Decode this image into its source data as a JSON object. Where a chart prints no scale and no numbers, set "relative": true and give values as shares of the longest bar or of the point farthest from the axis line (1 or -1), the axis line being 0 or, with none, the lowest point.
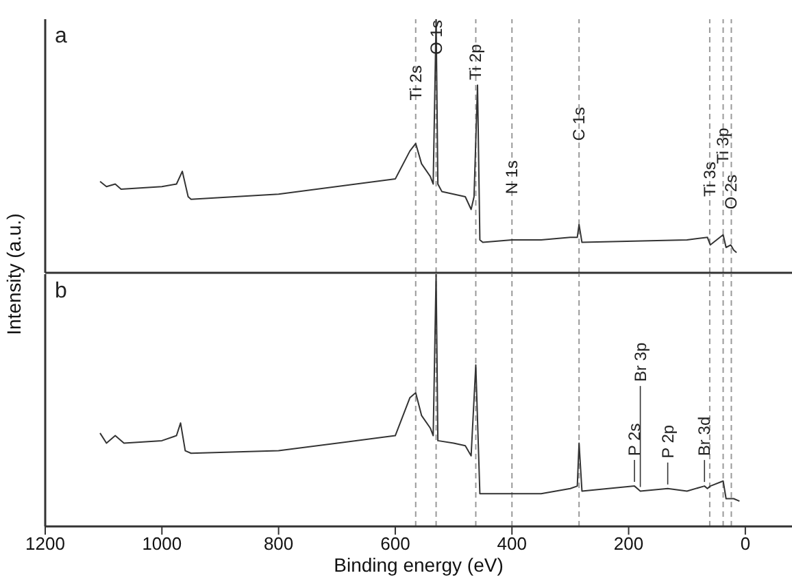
{
  "chart_data": [
    {
      "type": "line",
      "relative": true,
      "xlim": [
        1200,
        -80
      ],
      "tick_labels": false,
      "ylabel": "Intensity (a.u.)",
      "grid": false,
      "legend": false,
      "marker": "none",
      "line_style": "solid",
      "x": [
        1106,
        1095,
        1080,
        1070,
        1000,
        975,
        965,
        955,
        950,
        800,
        600,
        575,
        565,
        555,
        540,
        535,
        530,
        527,
        520,
        480,
        470,
        465,
        459,
        455,
        450,
        400,
        350,
        300,
        288,
        285,
        280,
        100,
        65,
        60,
        38,
        33,
        25,
        20,
        15
      ],
      "series": [
        {
          "color": "#333333",
          "values": [
            0.36,
            0.34,
            0.35,
            0.33,
            0.34,
            0.35,
            0.4,
            0.3,
            0.29,
            0.31,
            0.37,
            0.48,
            0.51,
            0.43,
            0.38,
            0.35,
            1,
            0.35,
            0.32,
            0.3,
            0.25,
            0.3,
            0.74,
            0.13,
            0.12,
            0.13,
            0.13,
            0.14,
            0.14,
            0.19,
            0.12,
            0.13,
            0.14,
            0.11,
            0.15,
            0.1,
            0.11,
            0.09,
            0.08
          ]
        }
      ],
      "ref_lines": [
        {
          "axis": "x",
          "value": 565,
          "color": "#999999",
          "line_style": "dashed"
        },
        {
          "axis": "x",
          "value": 530,
          "color": "#999999",
          "line_style": "dashed"
        },
        {
          "axis": "x",
          "value": 462,
          "color": "#999999",
          "line_style": "dashed"
        },
        {
          "axis": "x",
          "value": 400,
          "color": "#999999",
          "line_style": "dashed"
        },
        {
          "axis": "x",
          "value": 285,
          "color": "#999999",
          "line_style": "dashed"
        },
        {
          "axis": "x",
          "value": 61,
          "color": "#999999",
          "line_style": "dashed"
        },
        {
          "axis": "x",
          "value": 38,
          "color": "#999999",
          "line_style": "dashed"
        },
        {
          "axis": "x",
          "value": 24,
          "color": "#999999",
          "line_style": "dashed"
        }
      ],
      "annotations": [
        "a",
        {
          "text": "Ti 2s",
          "x": 565,
          "y": 0.68
        },
        {
          "text": "O 1s",
          "x": 530,
          "y": 0.86
        },
        {
          "text": "Ti 2p",
          "x": 462,
          "y": 0.76
        },
        {
          "text": "N 1s",
          "x": 400,
          "y": 0.31
        },
        {
          "text": "C 1s",
          "x": 285,
          "y": 0.52
        },
        {
          "text": "Ti 3s",
          "x": 61,
          "y": 0.3
        },
        {
          "text": "Ti 3p",
          "x": 38,
          "y": 0.43
        },
        {
          "text": "O 2s",
          "x": 24,
          "y": 0.25
        }
      ]
    },
    {
      "type": "line",
      "relative": true,
      "xlim": [
        1200,
        -80
      ],
      "xticks": [
        1200,
        1000,
        800,
        600,
        400,
        200,
        0
      ],
      "tick_labels": "x",
      "xlabel": "Binding energy (eV)",
      "grid": false,
      "legend": false,
      "marker": "none",
      "line_style": "solid",
      "x": [
        1106,
        1095,
        1080,
        1065,
        1000,
        975,
        968,
        960,
        950,
        800,
        600,
        575,
        565,
        555,
        540,
        535,
        530,
        527,
        500,
        480,
        470,
        462,
        455,
        400,
        350,
        300,
        288,
        285,
        280,
        190,
        180,
        133,
        100,
        70,
        65,
        60,
        38,
        33,
        20,
        10
      ],
      "series": [
        {
          "color": "#333333",
          "values": [
            0.37,
            0.33,
            0.36,
            0.33,
            0.34,
            0.36,
            0.41,
            0.3,
            0.29,
            0.3,
            0.36,
            0.51,
            0.53,
            0.44,
            0.39,
            0.36,
            1,
            0.34,
            0.33,
            0.32,
            0.28,
            0.64,
            0.13,
            0.13,
            0.13,
            0.15,
            0.16,
            0.33,
            0.14,
            0.16,
            0.14,
            0.15,
            0.14,
            0.16,
            0.15,
            0.16,
            0.18,
            0.11,
            0.11,
            0.1
          ]
        }
      ],
      "ref_lines": [
        {
          "axis": "x",
          "value": 565,
          "color": "#999999",
          "line_style": "dashed"
        },
        {
          "axis": "x",
          "value": 530,
          "color": "#999999",
          "line_style": "dashed"
        },
        {
          "axis": "x",
          "value": 462,
          "color": "#999999",
          "line_style": "dashed"
        },
        {
          "axis": "x",
          "value": 400,
          "color": "#999999",
          "line_style": "dashed"
        },
        {
          "axis": "x",
          "value": 285,
          "color": "#999999",
          "line_style": "dashed"
        },
        {
          "axis": "x",
          "value": 61,
          "color": "#999999",
          "line_style": "dashed"
        },
        {
          "axis": "x",
          "value": 38,
          "color": "#999999",
          "line_style": "dashed"
        },
        {
          "axis": "x",
          "value": 24,
          "color": "#999999",
          "line_style": "dashed"
        }
      ],
      "annotations": [
        "b",
        {
          "text": "P 2s",
          "x": 190,
          "y": 0.16
        },
        {
          "text": "Br 3p",
          "x": 180,
          "y": 0.14
        },
        {
          "text": "P 2p",
          "x": 133,
          "y": 0.15
        },
        {
          "text": "Br 3d",
          "x": 70,
          "y": 0.16
        }
      ]
    }
  ]
}
